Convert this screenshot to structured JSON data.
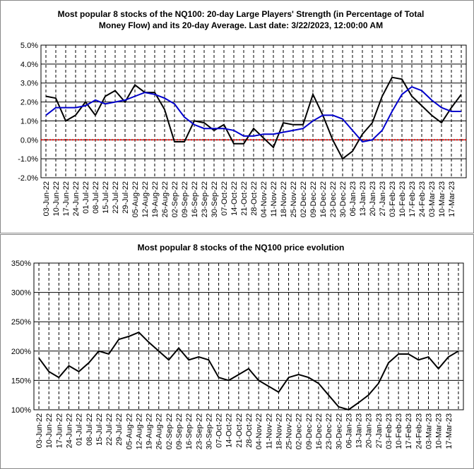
{
  "chart_data": [
    {
      "type": "line",
      "title": "Most popular 8 stocks of the NQ100: 20-day Large Players' Strength (in Percentage of Total Money Flow) and its 20-day Average. Last date: 3/22/2023, 12:00:00 AM",
      "categories": [
        "03-Jun-22",
        "10-Jun-22",
        "17-Jun-22",
        "24-Jun-22",
        "01-Jul-22",
        "08-Jul-22",
        "15-Jul-22",
        "22-Jul-22",
        "29-Jul-22",
        "05-Aug-22",
        "12-Aug-22",
        "19-Aug-22",
        "26-Aug-22",
        "02-Sep-22",
        "09-Sep-22",
        "16-Sep-22",
        "23-Sep-22",
        "30-Sep-22",
        "07-Oct-22",
        "14-Oct-22",
        "21-Oct-22",
        "28-Oct-22",
        "04-Nov-22",
        "11-Nov-22",
        "18-Nov-22",
        "25-Nov-22",
        "02-Dec-22",
        "09-Dec-22",
        "16-Dec-22",
        "23-Dec-22",
        "30-Dec-22",
        "06-Jan-23",
        "13-Jan-23",
        "20-Jan-23",
        "27-Jan-23",
        "03-Feb-23",
        "10-Feb-23",
        "17-Feb-23",
        "24-Feb-23",
        "03-Mar-23",
        "10-Mar-23",
        "17-Mar-23",
        null
      ],
      "series": [
        {
          "color": "#000000",
          "values": [
            2.3,
            2.2,
            1.0,
            1.3,
            2.0,
            1.3,
            2.3,
            2.6,
            2.0,
            2.9,
            2.5,
            2.5,
            1.6,
            -0.1,
            -0.1,
            1.0,
            0.9,
            0.5,
            0.8,
            -0.2,
            -0.2,
            0.6,
            0.1,
            -0.4,
            0.9,
            0.8,
            0.8,
            2.4,
            1.3,
            0.0,
            -1.0,
            -0.6,
            0.3,
            0.9,
            2.3,
            3.3,
            3.2,
            2.3,
            1.8,
            1.3,
            0.9,
            1.7,
            2.4
          ]
        },
        {
          "color": "#0000cc",
          "values": [
            1.3,
            1.7,
            1.7,
            1.7,
            1.8,
            2.1,
            1.9,
            2.0,
            2.1,
            2.3,
            2.5,
            2.4,
            2.2,
            1.9,
            1.2,
            0.8,
            0.6,
            0.6,
            0.6,
            0.5,
            0.2,
            0.2,
            0.3,
            0.3,
            0.4,
            0.5,
            0.6,
            1.0,
            1.3,
            1.3,
            1.1,
            0.5,
            -0.1,
            0.0,
            0.5,
            1.5,
            2.4,
            2.8,
            2.6,
            2.1,
            1.7,
            1.5,
            1.5
          ]
        }
      ],
      "ylim": [
        -2,
        5
      ],
      "yticks": [
        {
          "value": -2,
          "label": "-2.0%"
        },
        {
          "value": -1,
          "label": "-1.0%"
        },
        {
          "value": 0,
          "label": "0.0%"
        },
        {
          "value": 1,
          "label": "1.0%"
        },
        {
          "value": 2,
          "label": "2.0%"
        },
        {
          "value": 3,
          "label": "3.0%"
        },
        {
          "value": 4,
          "label": "4.0%"
        },
        {
          "value": 5,
          "label": "5.0%"
        }
      ],
      "grid": true,
      "zero_line": {
        "value": 0,
        "color": "#ff0000"
      }
    },
    {
      "type": "line",
      "title": "Most popular 8 stocks of the NQ100 price evolution",
      "categories": [
        "03-Jun-22",
        "10-Jun-22",
        "17-Jun-22",
        "24-Jun-22",
        "01-Jul-22",
        "08-Jul-22",
        "15-Jul-22",
        "22-Jul-22",
        "29-Jul-22",
        "05-Aug-22",
        "12-Aug-22",
        "19-Aug-22",
        "26-Aug-22",
        "02-Sep-22",
        "09-Sep-22",
        "16-Sep-22",
        "23-Sep-22",
        "30-Sep-22",
        "07-Oct-22",
        "14-Oct-22",
        "21-Oct-22",
        "28-Oct-22",
        "04-Nov-22",
        "11-Nov-22",
        "18-Nov-22",
        "25-Nov-22",
        "02-Dec-22",
        "09-Dec-22",
        "16-Dec-22",
        "23-Dec-22",
        "30-Dec-22",
        "06-Jan-23",
        "13-Jan-23",
        "20-Jan-23",
        "27-Jan-23",
        "03-Feb-23",
        "10-Feb-23",
        "17-Feb-23",
        "24-Feb-23",
        "03-Mar-23",
        "10-Mar-23",
        "17-Mar-23",
        null
      ],
      "series": [
        {
          "color": "#000000",
          "values": [
            188,
            165,
            155,
            175,
            165,
            180,
            200,
            195,
            220,
            225,
            232,
            215,
            200,
            185,
            205,
            185,
            190,
            185,
            155,
            150,
            160,
            170,
            150,
            140,
            130,
            155,
            160,
            155,
            145,
            125,
            105,
            100,
            112,
            125,
            145,
            180,
            195,
            195,
            185,
            190,
            170,
            190,
            200
          ]
        }
      ],
      "ylim": [
        100,
        350
      ],
      "yticks": [
        {
          "value": 100,
          "label": "100%"
        },
        {
          "value": 150,
          "label": "150%"
        },
        {
          "value": 200,
          "label": "200%"
        },
        {
          "value": 250,
          "label": "250%"
        },
        {
          "value": 300,
          "label": "300%"
        },
        {
          "value": 350,
          "label": "350%"
        }
      ],
      "grid": true
    }
  ]
}
